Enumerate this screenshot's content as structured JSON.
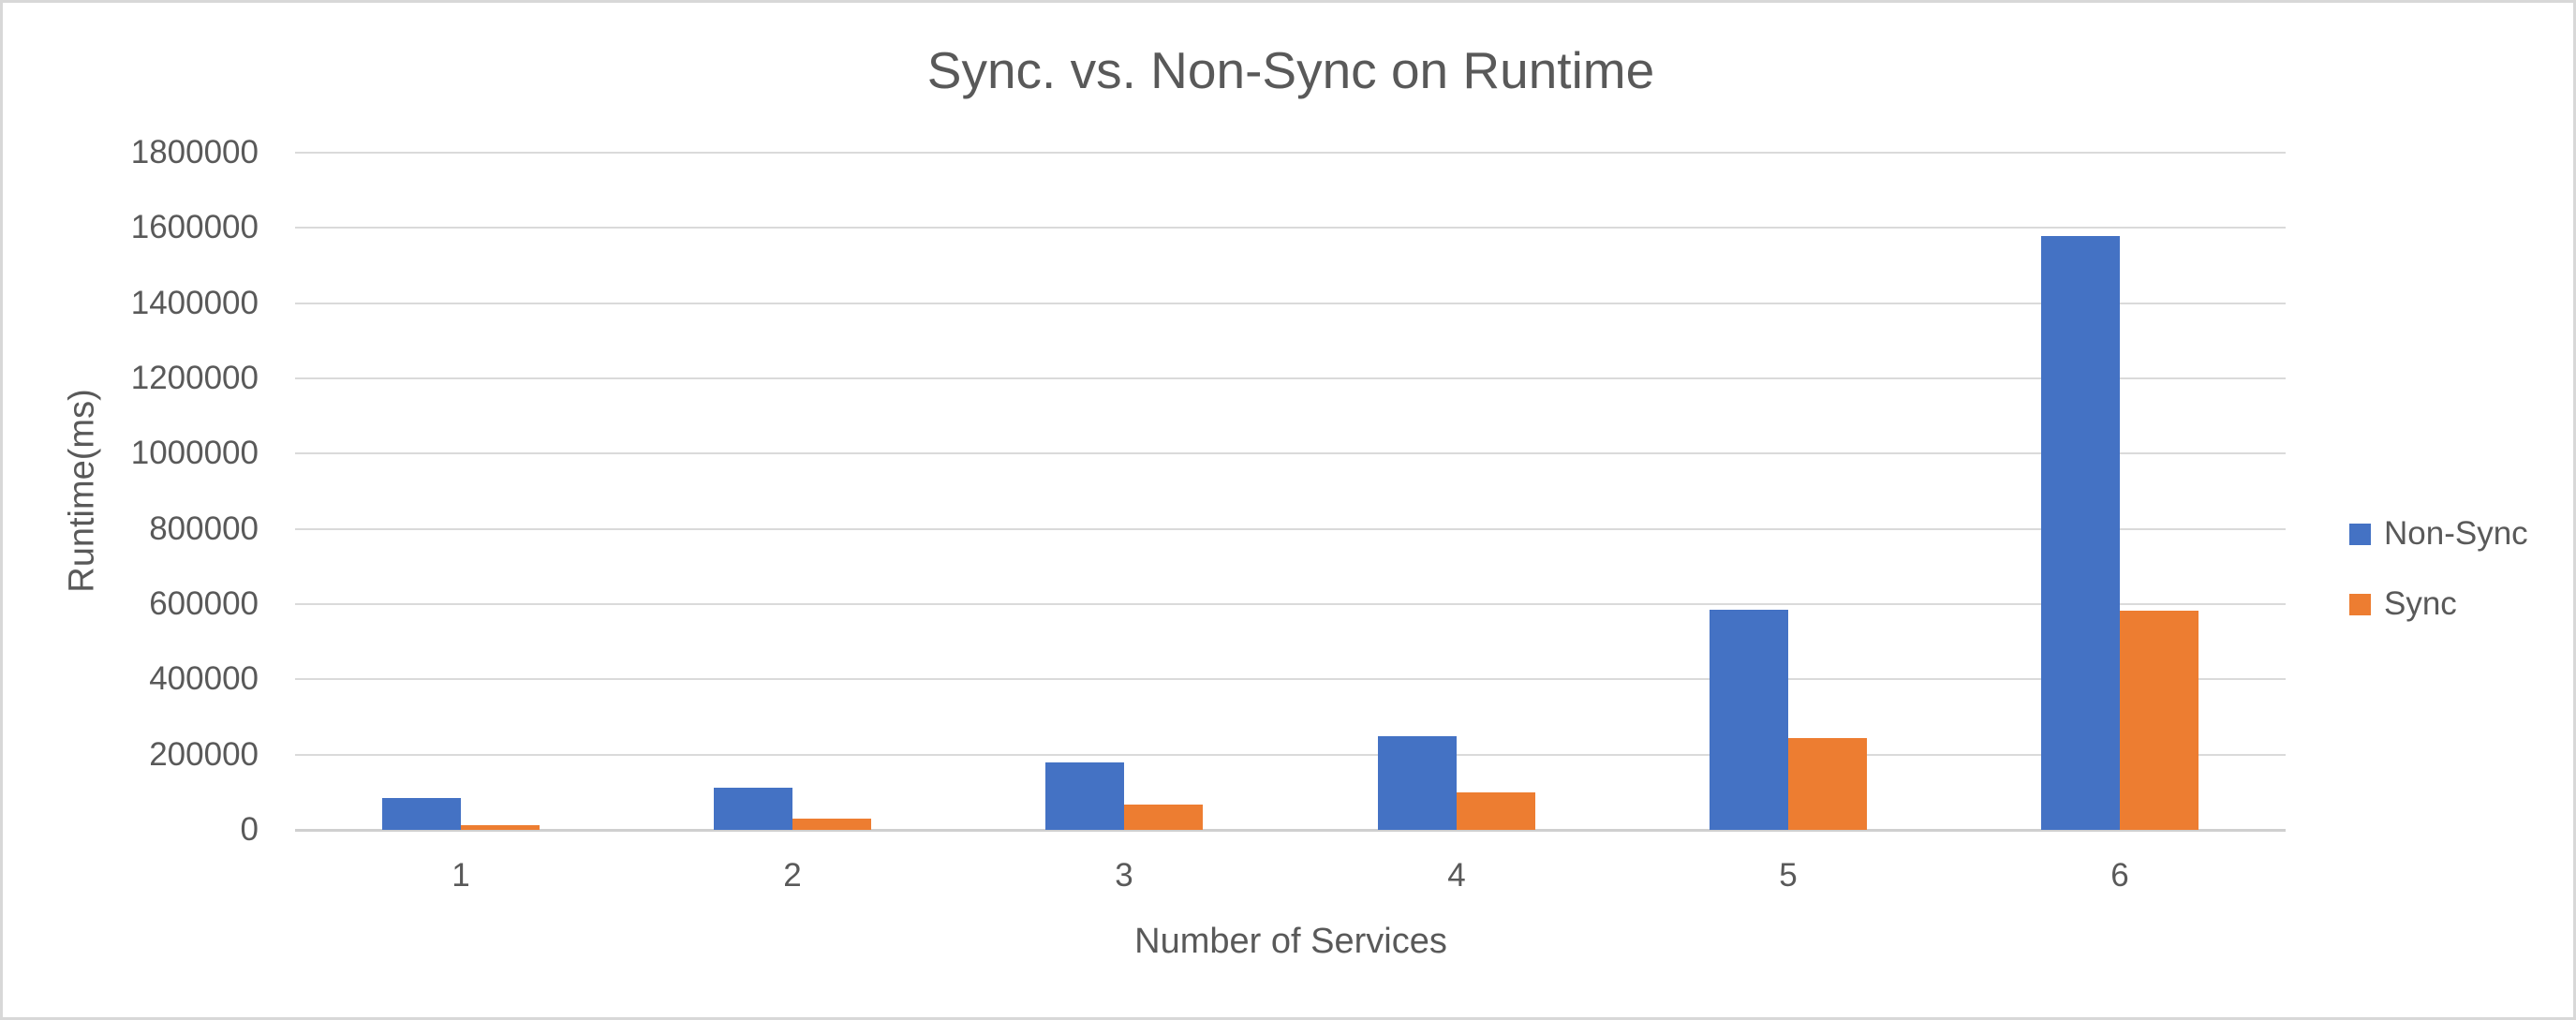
{
  "chart_data": {
    "type": "bar",
    "title": "Sync. vs. Non-Sync on Runtime",
    "xlabel": "Number of Services",
    "ylabel": "Runtime(ms)",
    "categories": [
      "1",
      "2",
      "3",
      "4",
      "5",
      "6"
    ],
    "series": [
      {
        "name": "Non-Sync",
        "color": "#4472C4",
        "values": [
          85000,
          113000,
          180000,
          250000,
          585000,
          1578000
        ]
      },
      {
        "name": "Sync",
        "color": "#ED7D31",
        "values": [
          13000,
          29000,
          66000,
          100000,
          243000,
          582000
        ]
      }
    ],
    "ylim": [
      0,
      1800000
    ],
    "ytick_step": 200000,
    "ytick_labels": [
      "0",
      "200000",
      "400000",
      "600000",
      "800000",
      "1000000",
      "1200000",
      "1400000",
      "1600000",
      "1800000"
    ],
    "grid": "horizontal",
    "legend_position": "right",
    "colors": {
      "text": "#595959",
      "gridline": "#dadada",
      "axis_line": "#cfcfcf",
      "frame_border": "#d8d8d8",
      "background": "#ffffff"
    }
  }
}
